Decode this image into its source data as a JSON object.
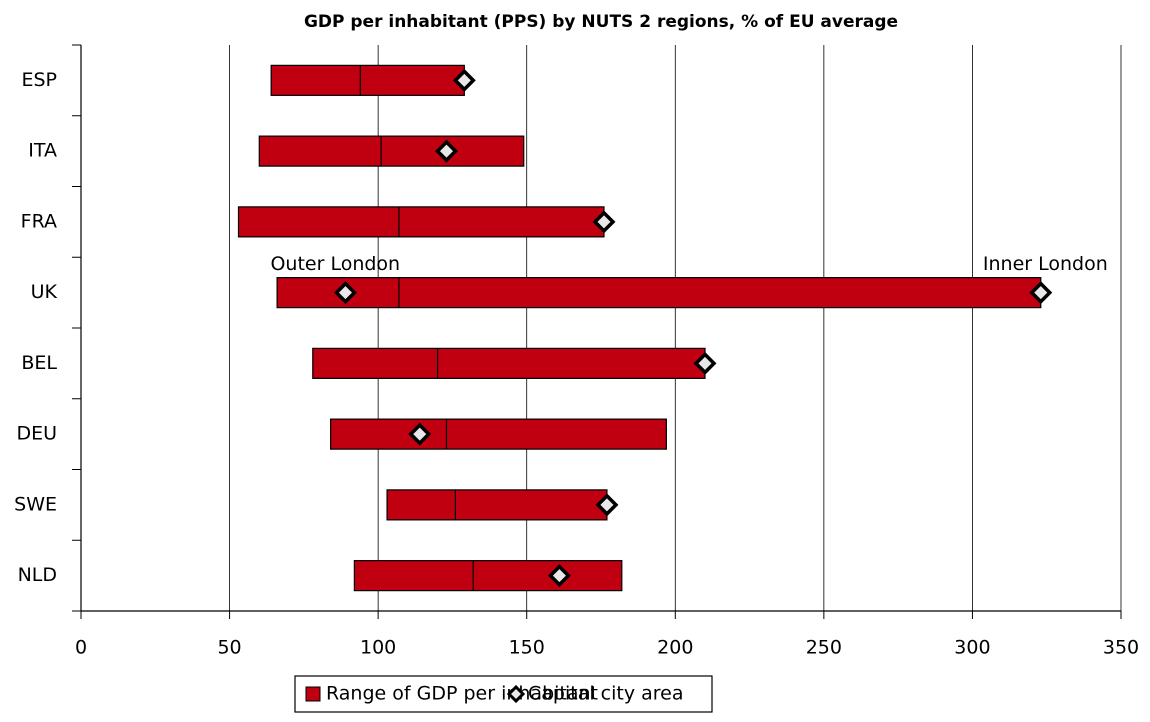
{
  "chart_data": {
    "type": "range-bar",
    "title": "GDP per inhabitant (PPS) by NUTS 2 regions, % of EU average",
    "categories": [
      "ESP",
      "ITA",
      "FRA",
      "UK",
      "BEL",
      "DEU",
      "SWE",
      "NLD"
    ],
    "series": [
      {
        "name": "Range of GDP per inhabitant",
        "color": "#c00010",
        "low": [
          64,
          60,
          53,
          66,
          78,
          84,
          103,
          92
        ],
        "mid": [
          94,
          101,
          107,
          107,
          120,
          123,
          126,
          132
        ],
        "high": [
          129,
          149,
          176,
          323,
          210,
          197,
          177,
          182
        ]
      },
      {
        "name": "Capital city area",
        "color": "#e8e8e8",
        "values": [
          [
            129
          ],
          [
            123
          ],
          [
            176
          ],
          [
            89,
            323
          ],
          [
            210
          ],
          [
            114
          ],
          [
            177
          ],
          [
            161
          ]
        ]
      }
    ],
    "annotations": [
      {
        "label": "Outer London",
        "value": 89
      },
      {
        "label": "Inner London",
        "value": 323
      }
    ],
    "xlim": [
      0,
      350
    ],
    "xticks": [
      0,
      50,
      100,
      150,
      200,
      250,
      300,
      350
    ],
    "grid": true
  }
}
